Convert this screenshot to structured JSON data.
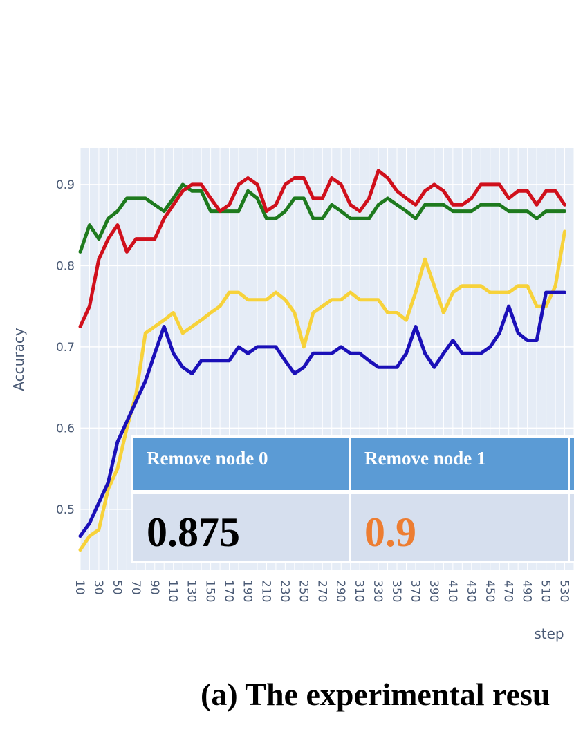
{
  "caption": "(a) The experimental resu",
  "colors": {
    "plot_bg": "#e5ecf6",
    "grid": "#ffffff",
    "green": "#1e7a1e",
    "red": "#d0101c",
    "yellow": "#f7d23a",
    "blue": "#1b10b8",
    "table_header": "#5b9bd5",
    "table_body": "#d6dfee",
    "value_default": "#000000",
    "value_highlight": "#ed7d31"
  },
  "table": {
    "columns": [
      {
        "header": "Remove node 0",
        "value": "0.875"
      },
      {
        "header": "Remove node 1",
        "value": "0.9"
      }
    ]
  },
  "chart_data": {
    "type": "line",
    "xlabel": "step",
    "ylabel": "Accuracy",
    "ylim": [
      0.425,
      0.945
    ],
    "grid": true,
    "y_ticks": [
      0.5,
      0.6,
      0.7,
      0.8,
      0.9
    ],
    "x_tick_labels": [
      "10",
      "30",
      "50",
      "70",
      "90",
      "110",
      "130",
      "150",
      "170",
      "190",
      "210",
      "230",
      "250",
      "270",
      "290",
      "310",
      "330",
      "350",
      "370",
      "390",
      "410",
      "430",
      "450",
      "470",
      "490",
      "510",
      "530"
    ],
    "x": [
      10,
      20,
      30,
      40,
      50,
      60,
      70,
      80,
      90,
      100,
      110,
      120,
      130,
      140,
      150,
      160,
      170,
      180,
      190,
      200,
      210,
      220,
      230,
      240,
      250,
      260,
      270,
      280,
      290,
      300,
      310,
      320,
      330,
      340,
      350,
      360,
      370,
      380,
      390,
      400,
      410,
      420,
      430,
      440,
      450,
      460,
      470,
      480,
      490,
      500,
      510,
      520,
      530
    ],
    "series": [
      {
        "color": "#1e7a1e",
        "values": [
          0.817,
          0.85,
          0.833,
          0.858,
          0.867,
          0.883,
          0.883,
          0.883,
          0.875,
          0.867,
          0.883,
          0.9,
          0.892,
          0.892,
          0.867,
          0.867,
          0.867,
          0.867,
          0.892,
          0.883,
          0.858,
          0.858,
          0.867,
          0.883,
          0.883,
          0.858,
          0.858,
          0.875,
          0.867,
          0.858,
          0.858,
          0.858,
          0.875,
          0.883,
          0.875,
          0.867,
          0.858,
          0.875,
          0.875,
          0.875,
          0.867,
          0.867,
          0.867,
          0.875,
          0.875,
          0.875,
          0.867,
          0.867,
          0.867,
          0.858,
          0.867,
          0.867,
          0.867
        ]
      },
      {
        "color": "#d0101c",
        "values": [
          0.725,
          0.75,
          0.808,
          0.833,
          0.85,
          0.817,
          0.833,
          0.833,
          0.833,
          0.858,
          0.875,
          0.892,
          0.9,
          0.9,
          0.883,
          0.867,
          0.875,
          0.9,
          0.908,
          0.9,
          0.867,
          0.875,
          0.9,
          0.908,
          0.908,
          0.883,
          0.883,
          0.908,
          0.9,
          0.875,
          0.867,
          0.883,
          0.917,
          0.908,
          0.892,
          0.883,
          0.875,
          0.892,
          0.9,
          0.892,
          0.875,
          0.875,
          0.883,
          0.9,
          0.9,
          0.9,
          0.883,
          0.892,
          0.892,
          0.875,
          0.892,
          0.892,
          0.875
        ]
      },
      {
        "color": "#f7d23a",
        "values": [
          0.45,
          0.467,
          0.475,
          0.525,
          0.55,
          0.6,
          0.642,
          0.717,
          0.725,
          0.733,
          0.742,
          0.717,
          0.725,
          0.733,
          0.742,
          0.75,
          0.767,
          0.767,
          0.758,
          0.758,
          0.758,
          0.767,
          0.758,
          0.742,
          0.7,
          0.742,
          0.75,
          0.758,
          0.758,
          0.767,
          0.758,
          0.758,
          0.758,
          0.742,
          0.742,
          0.733,
          0.767,
          0.808,
          0.775,
          0.742,
          0.767,
          0.775,
          0.775,
          0.775,
          0.767,
          0.767,
          0.767,
          0.775,
          0.775,
          0.75,
          0.75,
          0.775,
          0.842
        ]
      },
      {
        "color": "#1b10b8",
        "values": [
          0.467,
          0.483,
          0.508,
          0.533,
          0.583,
          0.608,
          0.633,
          0.658,
          0.692,
          0.725,
          0.692,
          0.675,
          0.667,
          0.683,
          0.683,
          0.683,
          0.683,
          0.7,
          0.692,
          0.7,
          0.7,
          0.7,
          0.683,
          0.667,
          0.675,
          0.692,
          0.692,
          0.692,
          0.7,
          0.692,
          0.692,
          0.683,
          0.675,
          0.675,
          0.675,
          0.692,
          0.725,
          0.692,
          0.675,
          0.692,
          0.708,
          0.692,
          0.692,
          0.692,
          0.7,
          0.717,
          0.75,
          0.717,
          0.708,
          0.708,
          0.767,
          0.767,
          0.767
        ]
      }
    ]
  }
}
